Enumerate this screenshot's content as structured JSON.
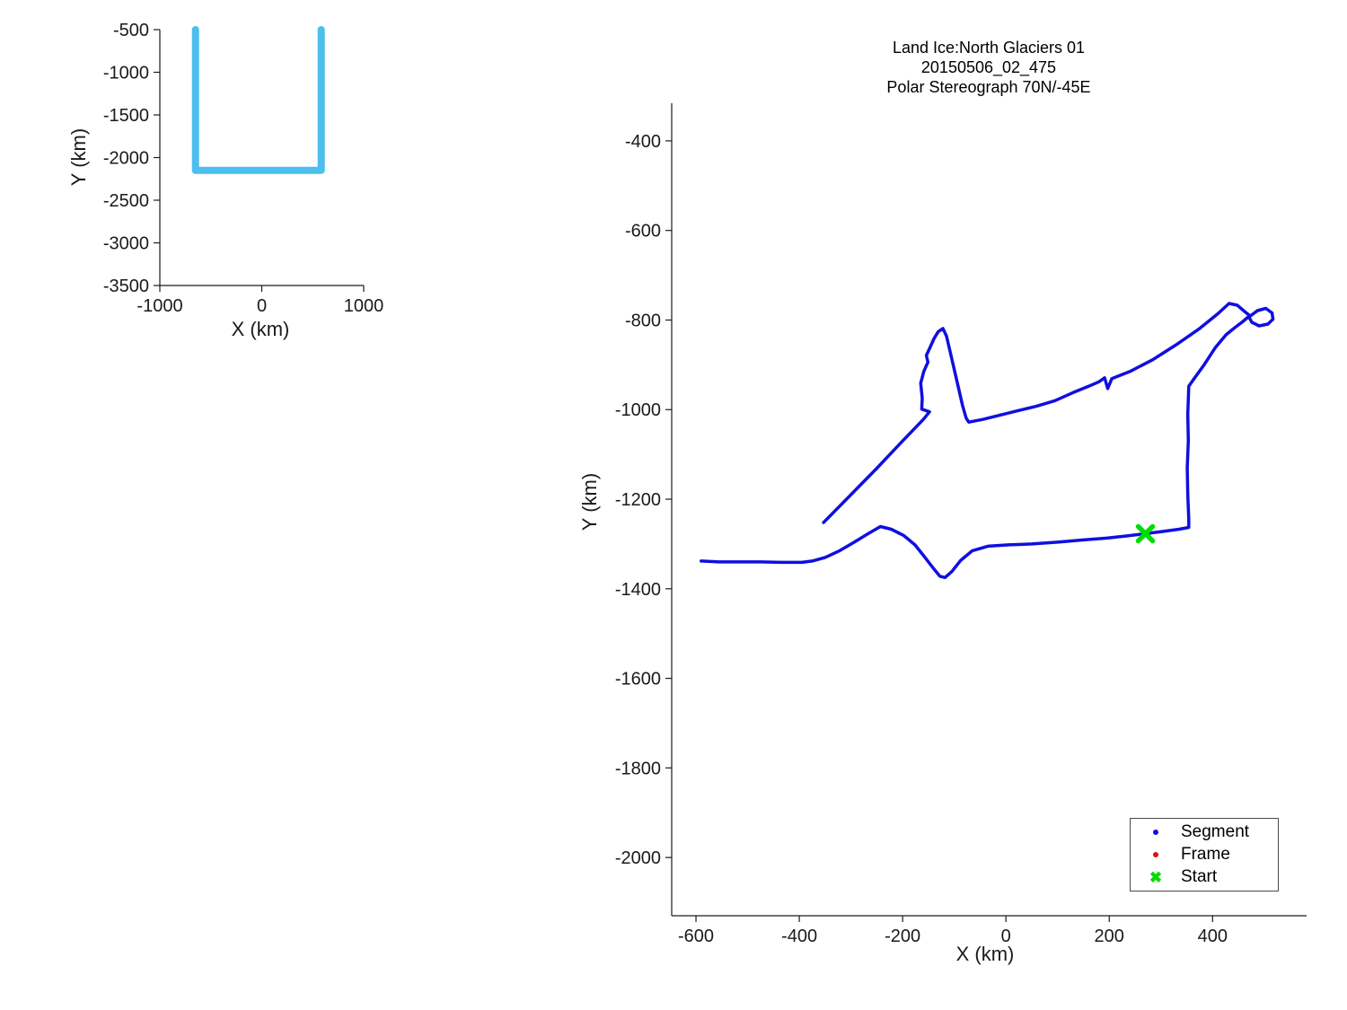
{
  "chart_data": [
    {
      "type": "line",
      "name": "region-overview-plot",
      "xlabel": "X (km)",
      "ylabel": "Y (km)",
      "xlim": [
        -1000,
        1000
      ],
      "ylim": [
        -3500,
        -500
      ],
      "xticks": [
        -1000,
        0,
        1000
      ],
      "yticks": [
        -500,
        -1000,
        -1500,
        -2000,
        -2500,
        -3000,
        -3500
      ],
      "grid": false,
      "series": [
        {
          "name": "region-outline",
          "color": "#4dbeee",
          "stroke_width": 8,
          "paths": [
            [
              [
                -650,
                -500
              ],
              [
                -650,
                -2150
              ],
              [
                583,
                -2150
              ],
              [
                583,
                -500
              ]
            ]
          ]
        }
      ]
    },
    {
      "type": "line",
      "name": "flight-track-plot",
      "title": [
        "Land Ice:North Glaciers 01",
        "20150506_02_475",
        "Polar Stereograph 70N/-45E"
      ],
      "xlabel": "X (km)",
      "ylabel": "Y (km)",
      "xlim": [
        -647,
        582
      ],
      "ylim": [
        -2130,
        -316
      ],
      "xticks": [
        -600,
        -400,
        -200,
        0,
        200,
        400
      ],
      "yticks": [
        -400,
        -600,
        -800,
        -1000,
        -1200,
        -1400,
        -1600,
        -1800,
        -2000
      ],
      "grid": false,
      "series": [
        {
          "name": "segment-track",
          "legend_label": "Segment",
          "color": "#0f0fe0",
          "stroke_width": 3.5,
          "paths": [
            [
              [
                -353,
                -1252
              ],
              [
                -300,
                -1190
              ],
              [
                -250,
                -1131
              ],
              [
                -200,
                -1070
              ],
              [
                -160,
                -1022
              ],
              [
                -148,
                -1005
              ],
              [
                -163,
                -999
              ],
              [
                -162,
                -975
              ],
              [
                -165,
                -941
              ],
              [
                -159,
                -915
              ],
              [
                -151,
                -894
              ],
              [
                -154,
                -879
              ],
              [
                -146,
                -859
              ],
              [
                -139,
                -841
              ],
              [
                -131,
                -826
              ],
              [
                -122,
                -819
              ],
              [
                -115,
                -836
              ],
              [
                -108,
                -871
              ],
              [
                -100,
                -911
              ],
              [
                -92,
                -951
              ],
              [
                -84,
                -991
              ],
              [
                -77,
                -1019
              ],
              [
                -72,
                -1028
              ],
              [
                -45,
                -1022
              ],
              [
                -10,
                -1012
              ],
              [
                25,
                -1002
              ],
              [
                60,
                -992
              ],
              [
                95,
                -980
              ],
              [
                130,
                -962
              ],
              [
                160,
                -948
              ],
              [
                180,
                -938
              ],
              [
                191,
                -929
              ],
              [
                197,
                -953
              ],
              [
                205,
                -931
              ],
              [
                240,
                -915
              ],
              [
                285,
                -888
              ],
              [
                330,
                -855
              ],
              [
                375,
                -819
              ],
              [
                410,
                -786
              ],
              [
                432,
                -763
              ],
              [
                448,
                -767
              ],
              [
                462,
                -781
              ],
              [
                473,
                -791
              ],
              [
                487,
                -779
              ],
              [
                503,
                -774
              ],
              [
                515,
                -784
              ],
              [
                517,
                -798
              ],
              [
                507,
                -809
              ],
              [
                490,
                -813
              ],
              [
                476,
                -805
              ],
              [
                470,
                -792
              ],
              [
                459,
                -803
              ],
              [
                442,
                -818
              ],
              [
                426,
                -833
              ],
              [
                405,
                -862
              ],
              [
                383,
                -901
              ],
              [
                363,
                -933
              ],
              [
                354,
                -948
              ],
              [
                352,
                -1010
              ],
              [
                353,
                -1070
              ],
              [
                351,
                -1130
              ],
              [
                352,
                -1190
              ],
              [
                354,
                -1245
              ],
              [
                354,
                -1263
              ],
              [
                335,
                -1267
              ],
              [
                305,
                -1272
              ],
              [
                270,
                -1277
              ],
              [
                235,
                -1282
              ],
              [
                195,
                -1287
              ],
              [
                150,
                -1291
              ],
              [
                100,
                -1296
              ],
              [
                50,
                -1300
              ],
              [
                5,
                -1302
              ],
              [
                -35,
                -1305
              ],
              [
                -65,
                -1315
              ],
              [
                -88,
                -1337
              ],
              [
                -105,
                -1362
              ],
              [
                -118,
                -1375
              ],
              [
                -128,
                -1372
              ],
              [
                -140,
                -1355
              ],
              [
                -158,
                -1328
              ],
              [
                -176,
                -1302
              ],
              [
                -198,
                -1281
              ],
              [
                -222,
                -1267
              ],
              [
                -243,
                -1261
              ],
              [
                -268,
                -1278
              ],
              [
                -295,
                -1297
              ],
              [
                -322,
                -1315
              ],
              [
                -350,
                -1330
              ],
              [
                -375,
                -1338
              ],
              [
                -395,
                -1341
              ],
              [
                -435,
                -1341
              ],
              [
                -475,
                -1340
              ],
              [
                -515,
                -1340
              ],
              [
                -555,
                -1340
              ],
              [
                -590,
                -1338
              ]
            ]
          ]
        },
        {
          "name": "frame-track",
          "legend_label": "Frame",
          "color": "#e01010",
          "stroke_width": 2,
          "paths": []
        }
      ],
      "markers": [
        {
          "name": "start-marker",
          "legend_label": "Start",
          "x": 270,
          "y": -1277,
          "color": "#00dd00",
          "shape": "x",
          "size": 16
        }
      ],
      "legend": {
        "position": "lower-right",
        "items": [
          {
            "label": "Segment",
            "marker": "dot",
            "color": "#0f0fe0"
          },
          {
            "label": "Frame",
            "marker": "dot",
            "color": "#e01010"
          },
          {
            "label": "Start",
            "marker": "x",
            "color": "#00dd00"
          }
        ]
      }
    }
  ]
}
